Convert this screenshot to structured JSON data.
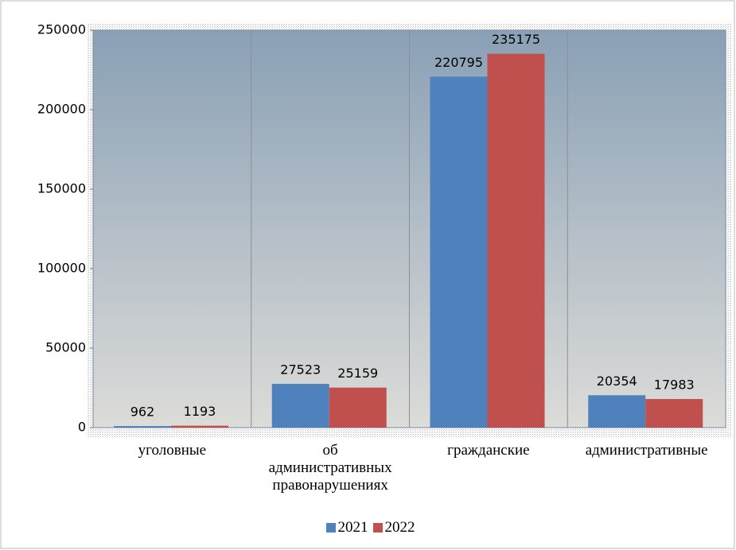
{
  "chart_data": {
    "type": "bar",
    "categories": [
      "уголовные",
      "об административных правонарушениях",
      "гражданские",
      "административные"
    ],
    "series": [
      {
        "name": "2021",
        "color": "#4f81bd",
        "values": [
          962,
          27523,
          220795,
          20354
        ]
      },
      {
        "name": "2022",
        "color": "#c0504d",
        "values": [
          1193,
          25159,
          235175,
          17983
        ]
      }
    ],
    "ylim": [
      0,
      250000
    ],
    "yticks": [
      0,
      50000,
      100000,
      150000,
      200000,
      250000
    ],
    "legend": "bottom"
  }
}
